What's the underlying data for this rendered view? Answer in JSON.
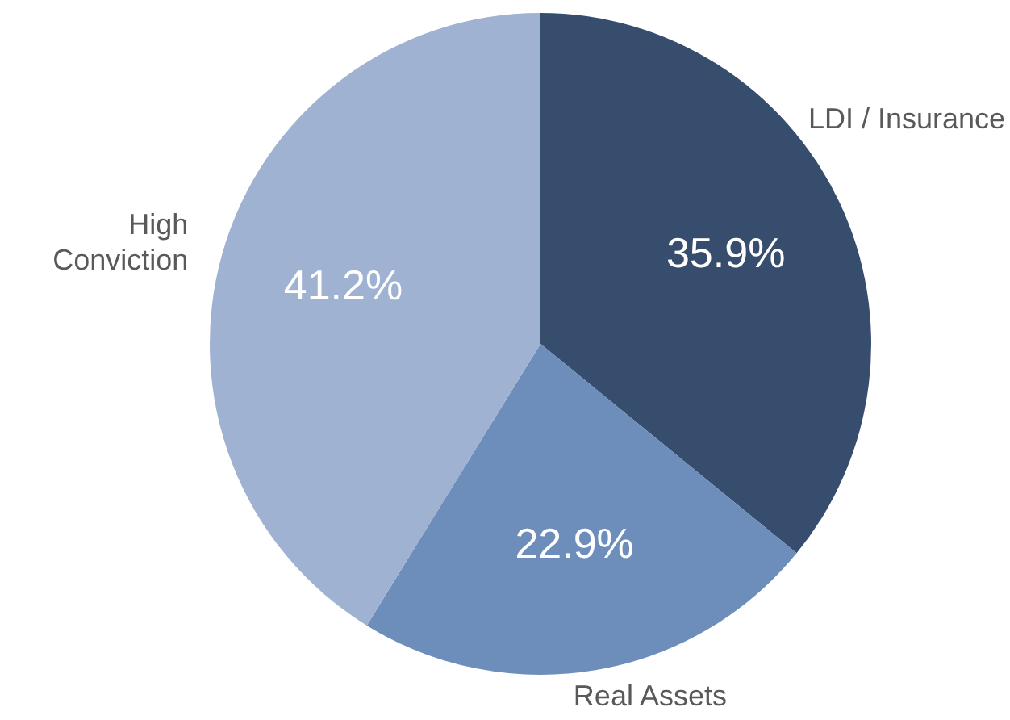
{
  "chart_data": {
    "type": "pie",
    "categories": [
      "LDI / Insurance",
      "Real Assets",
      "High Conviction"
    ],
    "values": [
      35.9,
      22.9,
      41.2
    ],
    "colors": [
      "#374d6e",
      "#6d8dba",
      "#9fb2d2"
    ],
    "value_labels": [
      "35.9%",
      "22.9%",
      "41.2%"
    ],
    "legend": false
  }
}
